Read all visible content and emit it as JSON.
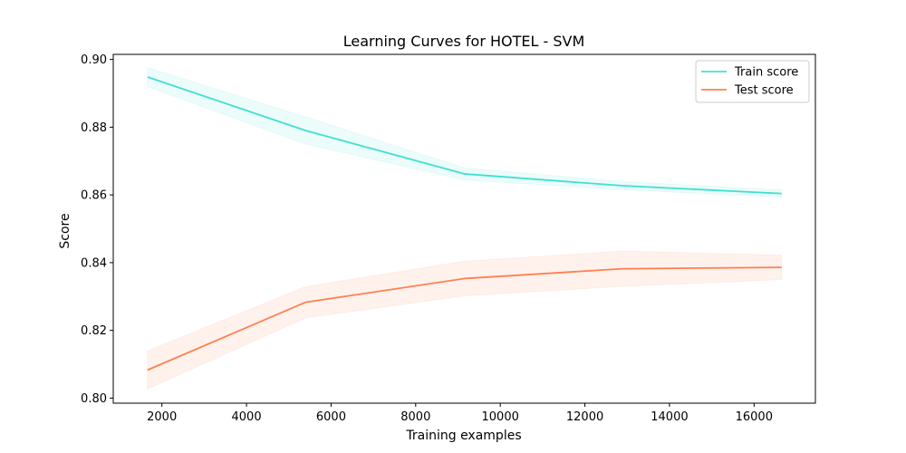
{
  "chart_data": {
    "type": "line",
    "title": "Learning Curves for HOTEL - SVM",
    "xlabel": "Training examples",
    "ylabel": "Score",
    "xlim": [
      850,
      17450
    ],
    "ylim": [
      0.7985,
      0.9015
    ],
    "xticks": [
      2000,
      4000,
      6000,
      8000,
      10000,
      12000,
      14000,
      16000
    ],
    "yticks": [
      0.8,
      0.82,
      0.84,
      0.86,
      0.88,
      0.9
    ],
    "xtick_labels": [
      "2000",
      "4000",
      "6000",
      "8000",
      "10000",
      "12000",
      "14000",
      "16000"
    ],
    "ytick_labels": [
      "0.80",
      "0.82",
      "0.84",
      "0.86",
      "0.88",
      "0.90"
    ],
    "grid": false,
    "legend": "top-right",
    "x": [
      1660,
      5400,
      9150,
      12900,
      16650
    ],
    "series": [
      {
        "name": "Train score",
        "color": "#40e0d0",
        "band_color": "#40e0d0",
        "values": [
          0.8948,
          0.879,
          0.8662,
          0.8627,
          0.8604
        ],
        "lower": [
          0.892,
          0.875,
          0.8644,
          0.8615,
          0.8593
        ],
        "upper": [
          0.8976,
          0.883,
          0.868,
          0.8639,
          0.8615
        ]
      },
      {
        "name": "Test score",
        "color": "#ff7f50",
        "band_color": "#ff7f50",
        "values": [
          0.8083,
          0.8283,
          0.8353,
          0.8382,
          0.8386
        ],
        "lower": [
          0.8027,
          0.8237,
          0.8302,
          0.833,
          0.835
        ],
        "upper": [
          0.8139,
          0.8329,
          0.8404,
          0.8434,
          0.8422
        ]
      }
    ]
  }
}
